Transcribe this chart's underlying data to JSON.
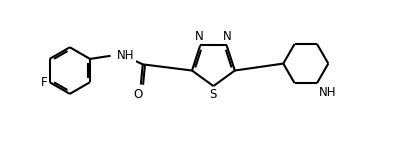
{
  "bg_color": "#ffffff",
  "line_color": "#000000",
  "lw": 1.5,
  "fs": 8.5,
  "fig_width": 4.02,
  "fig_height": 1.45,
  "dpi": 100,
  "xlim": [
    0,
    10.2
  ],
  "ylim": [
    0,
    3.7
  ]
}
